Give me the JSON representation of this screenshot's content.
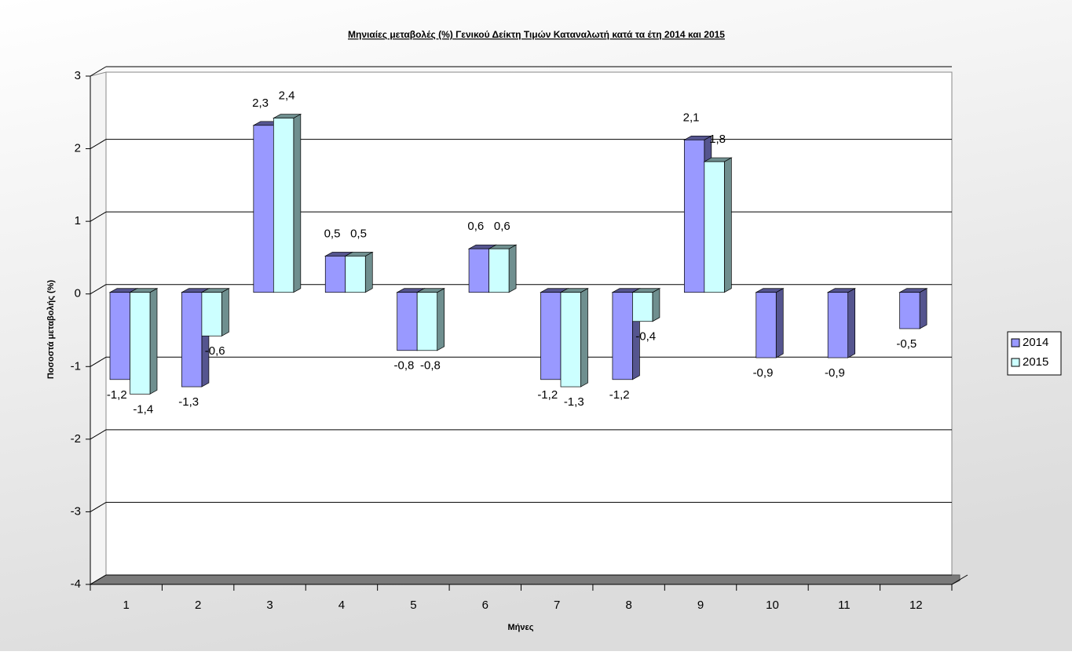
{
  "chart_data": {
    "type": "bar3d",
    "title": "Μηνιαίες μεταβολές (%) Γενικού Δείκτη Τιμών Καταναλωτή κατά τα έτη 2014 και 2015",
    "x_label": "Μήνες",
    "y_label": "Ποσοστά μεταβολής (%)",
    "categories": [
      "1",
      "2",
      "3",
      "4",
      "5",
      "6",
      "7",
      "8",
      "9",
      "10",
      "11",
      "12"
    ],
    "series": [
      {
        "name": "2014",
        "color": "#9999ff",
        "side_color": "#55558f",
        "values": [
          -1.2,
          -1.3,
          2.3,
          0.5,
          -0.8,
          0.6,
          -1.2,
          -1.2,
          2.1,
          -0.9,
          -0.9,
          -0.5
        ],
        "value_labels": [
          "-1,2",
          "-1,3",
          "2,3",
          "0,5",
          "-0,8",
          "0,6",
          "-1,2",
          "-1,2",
          "2,1",
          "-0,9",
          "-0,9",
          "-0,5"
        ]
      },
      {
        "name": "2015",
        "color": "#ccffff",
        "side_color": "#6f8f8f",
        "values": [
          -1.4,
          -0.6,
          2.4,
          0.5,
          -0.8,
          0.6,
          -1.3,
          -0.4,
          1.8,
          null,
          null,
          null
        ],
        "value_labels": [
          "-1,4",
          "-0,6",
          "2,4",
          "0,5",
          "-0,8",
          "0,6",
          "-1,3",
          "-0,4",
          "1,8",
          null,
          null,
          null
        ]
      }
    ],
    "ylim": [
      -4,
      3
    ],
    "yticks": [
      -4,
      -3,
      -2,
      -1,
      0,
      1,
      2,
      3
    ],
    "grid": true,
    "legend": "right"
  }
}
